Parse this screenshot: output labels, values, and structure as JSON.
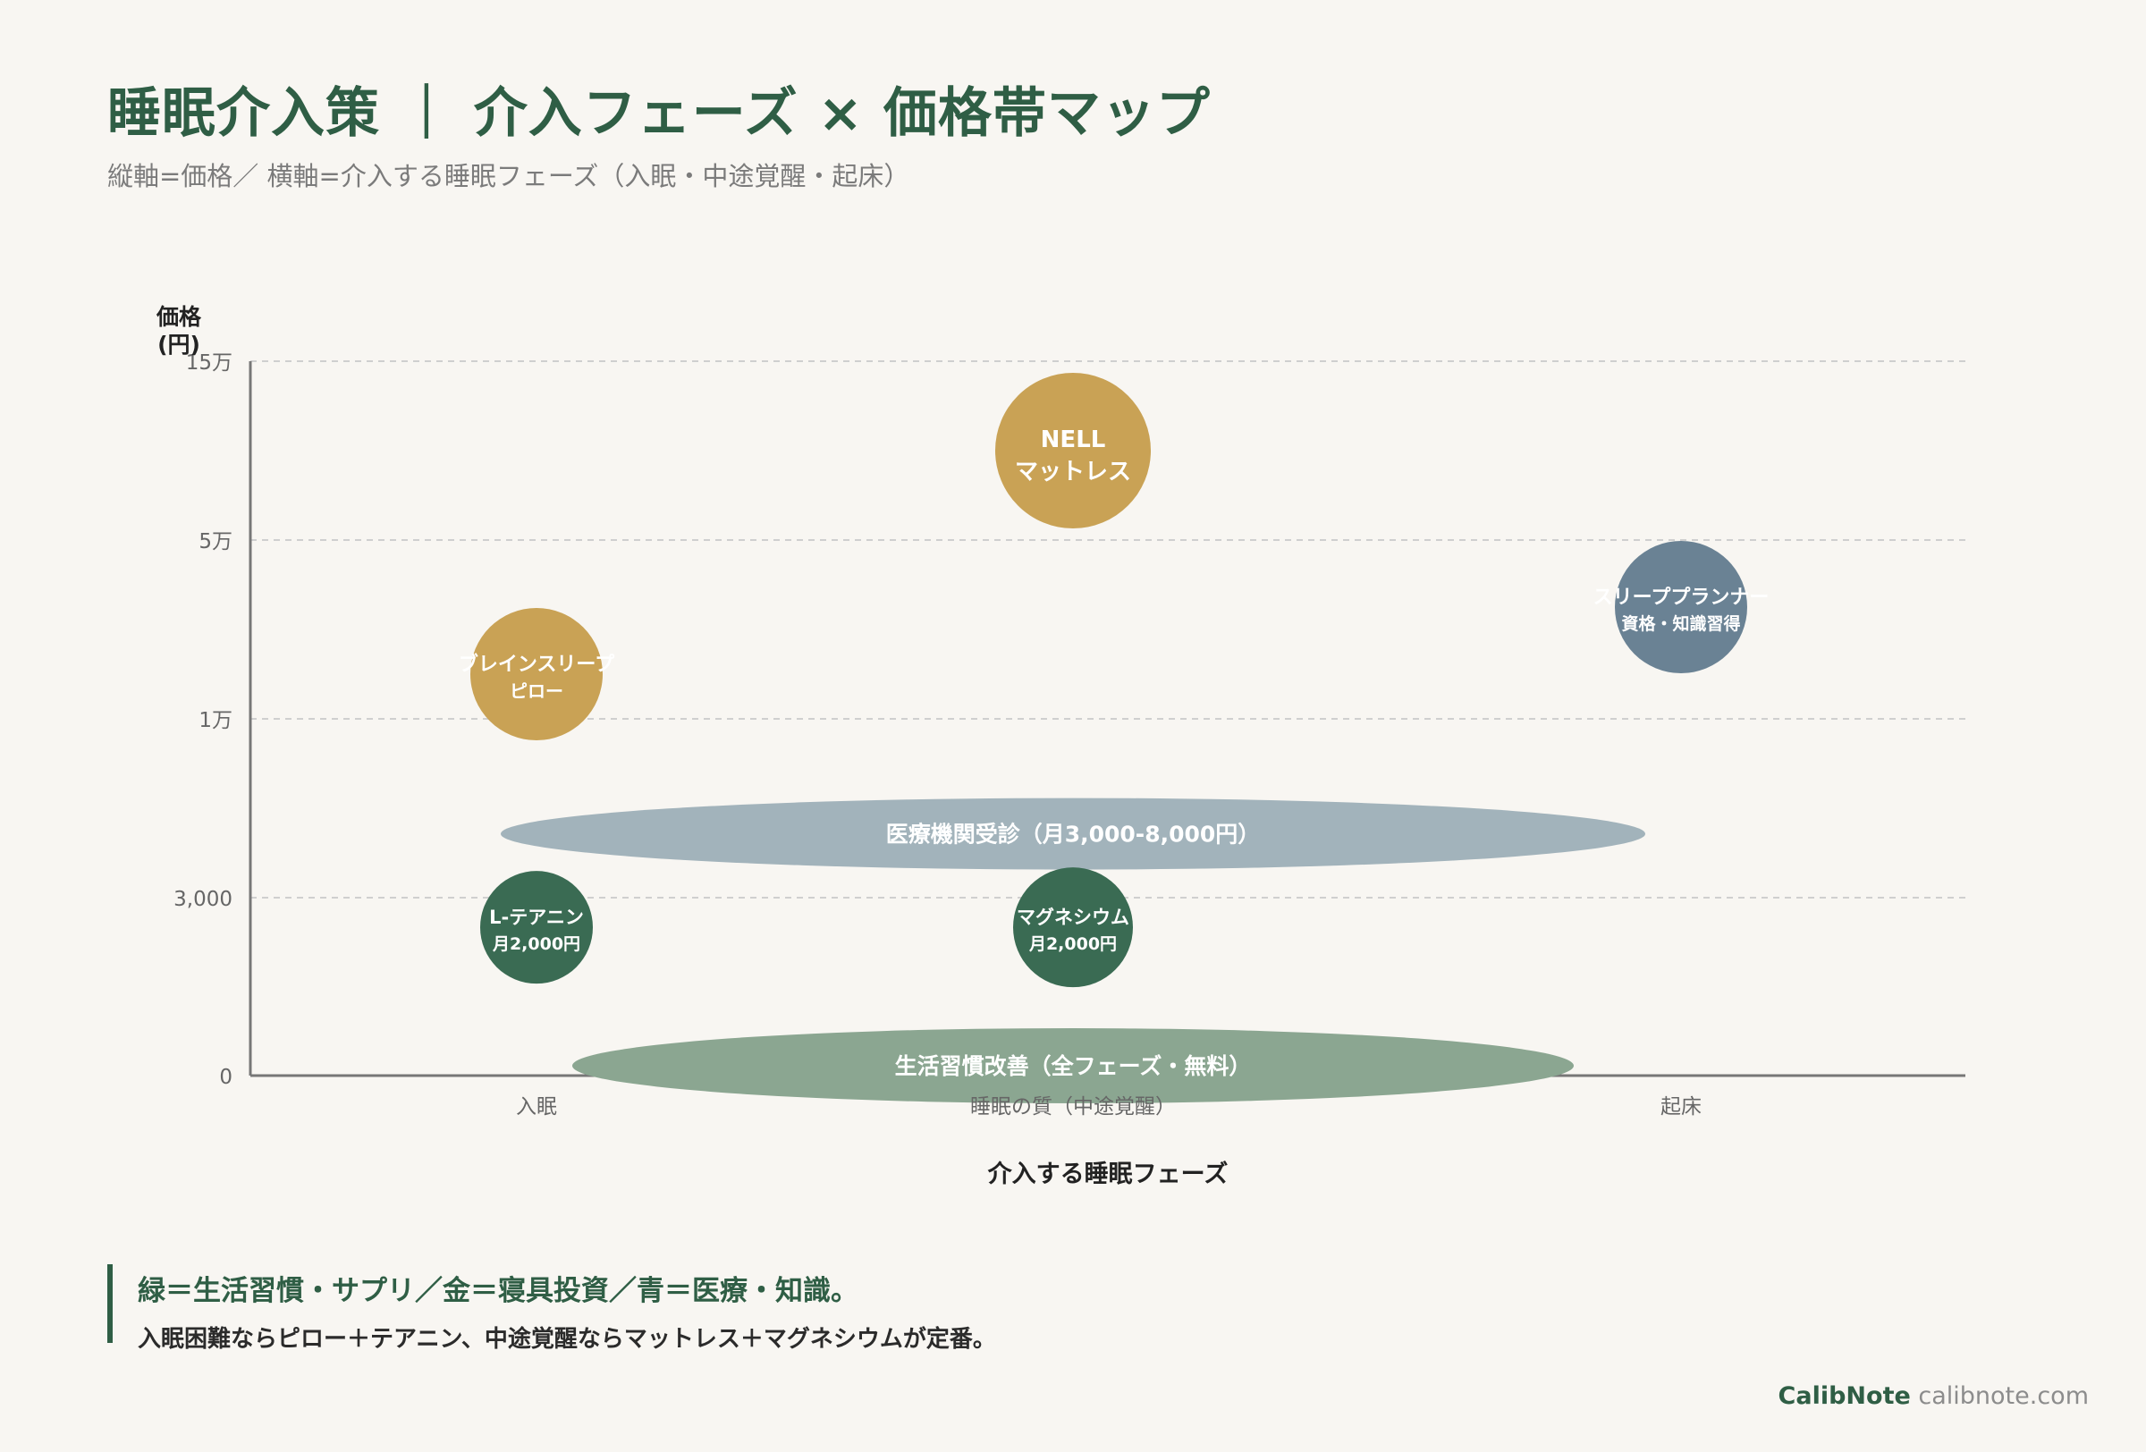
{
  "header": {
    "title": "睡眠介入策 ｜ 介入フェーズ × 価格帯マップ",
    "subtitle": "縦軸=価格／ 横軸=介入する睡眠フェーズ（入眠・中途覚醒・起床）"
  },
  "chart_data": {
    "type": "scatter",
    "y_scale": "ordinal-price",
    "xlabel": "介入する睡眠フェーズ",
    "ylabel": "価格\n(円)",
    "x_categories": [
      "入眠",
      "睡眠の質（中途覚醒）",
      "起床"
    ],
    "y_ticks": [
      {
        "value": 0,
        "label": "0"
      },
      {
        "value": 3000,
        "label": "3,000"
      },
      {
        "value": 10000,
        "label": "1万"
      },
      {
        "value": 50000,
        "label": "5万"
      },
      {
        "value": 150000,
        "label": "15万"
      }
    ],
    "grid": true,
    "colors": {
      "gold": "#c9a255",
      "steel": "#6a8294",
      "green": "#3a6b53",
      "band_blue": "#a2b3bb",
      "band_green": "#8ba691"
    },
    "points": [
      {
        "label": "NELL",
        "sublabel": "マットレス",
        "x": "睡眠の質（中途覚醒）",
        "y": 100000,
        "color": "gold"
      },
      {
        "label": "スリーププランナー",
        "sublabel": "資格・知識習得",
        "x": "起床",
        "y": 35000,
        "color": "steel"
      },
      {
        "label": "ブレインスリープ",
        "sublabel": "ピロー",
        "x": "入眠",
        "y": 20000,
        "color": "gold"
      },
      {
        "label": "L-テアニン",
        "sublabel": "月2,000円",
        "x": "入眠",
        "y": 2500,
        "color": "green"
      },
      {
        "label": "マグネシウム",
        "sublabel": "月2,000円",
        "x": "睡眠の質（中途覚醒）",
        "y": 2500,
        "color": "green"
      }
    ],
    "bands": [
      {
        "label": "医療機関受診（月3,000-8,000円）",
        "x_from": "入眠",
        "x_to": "起床",
        "y": 5500,
        "color": "band_blue"
      },
      {
        "label": "生活習慣改善（全フェーズ・無料）",
        "x_from": "入眠",
        "x_to": "起床",
        "y": 0,
        "color": "band_green"
      }
    ]
  },
  "callout": {
    "line1": "緑＝生活習慣・サプリ／金＝寝具投資／青＝医療・知識。",
    "line2": "入眠困難ならピロー＋テアニン、中途覚醒ならマットレス＋マグネシウムが定番。"
  },
  "credit": {
    "brand": "CalibNote",
    "url": "calibnote.com"
  }
}
